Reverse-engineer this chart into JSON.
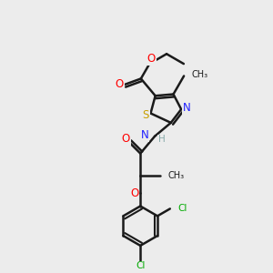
{
  "background_color": "#ececec",
  "bond_color": "#1a1a1a",
  "colors": {
    "S": "#c8a000",
    "N": "#2020ff",
    "O": "#ff0000",
    "Cl": "#00aa00",
    "NH": "#2020ff",
    "H": "#88aaaa",
    "C": "#1a1a1a"
  },
  "figsize": [
    3.0,
    3.0
  ],
  "dpi": 100
}
